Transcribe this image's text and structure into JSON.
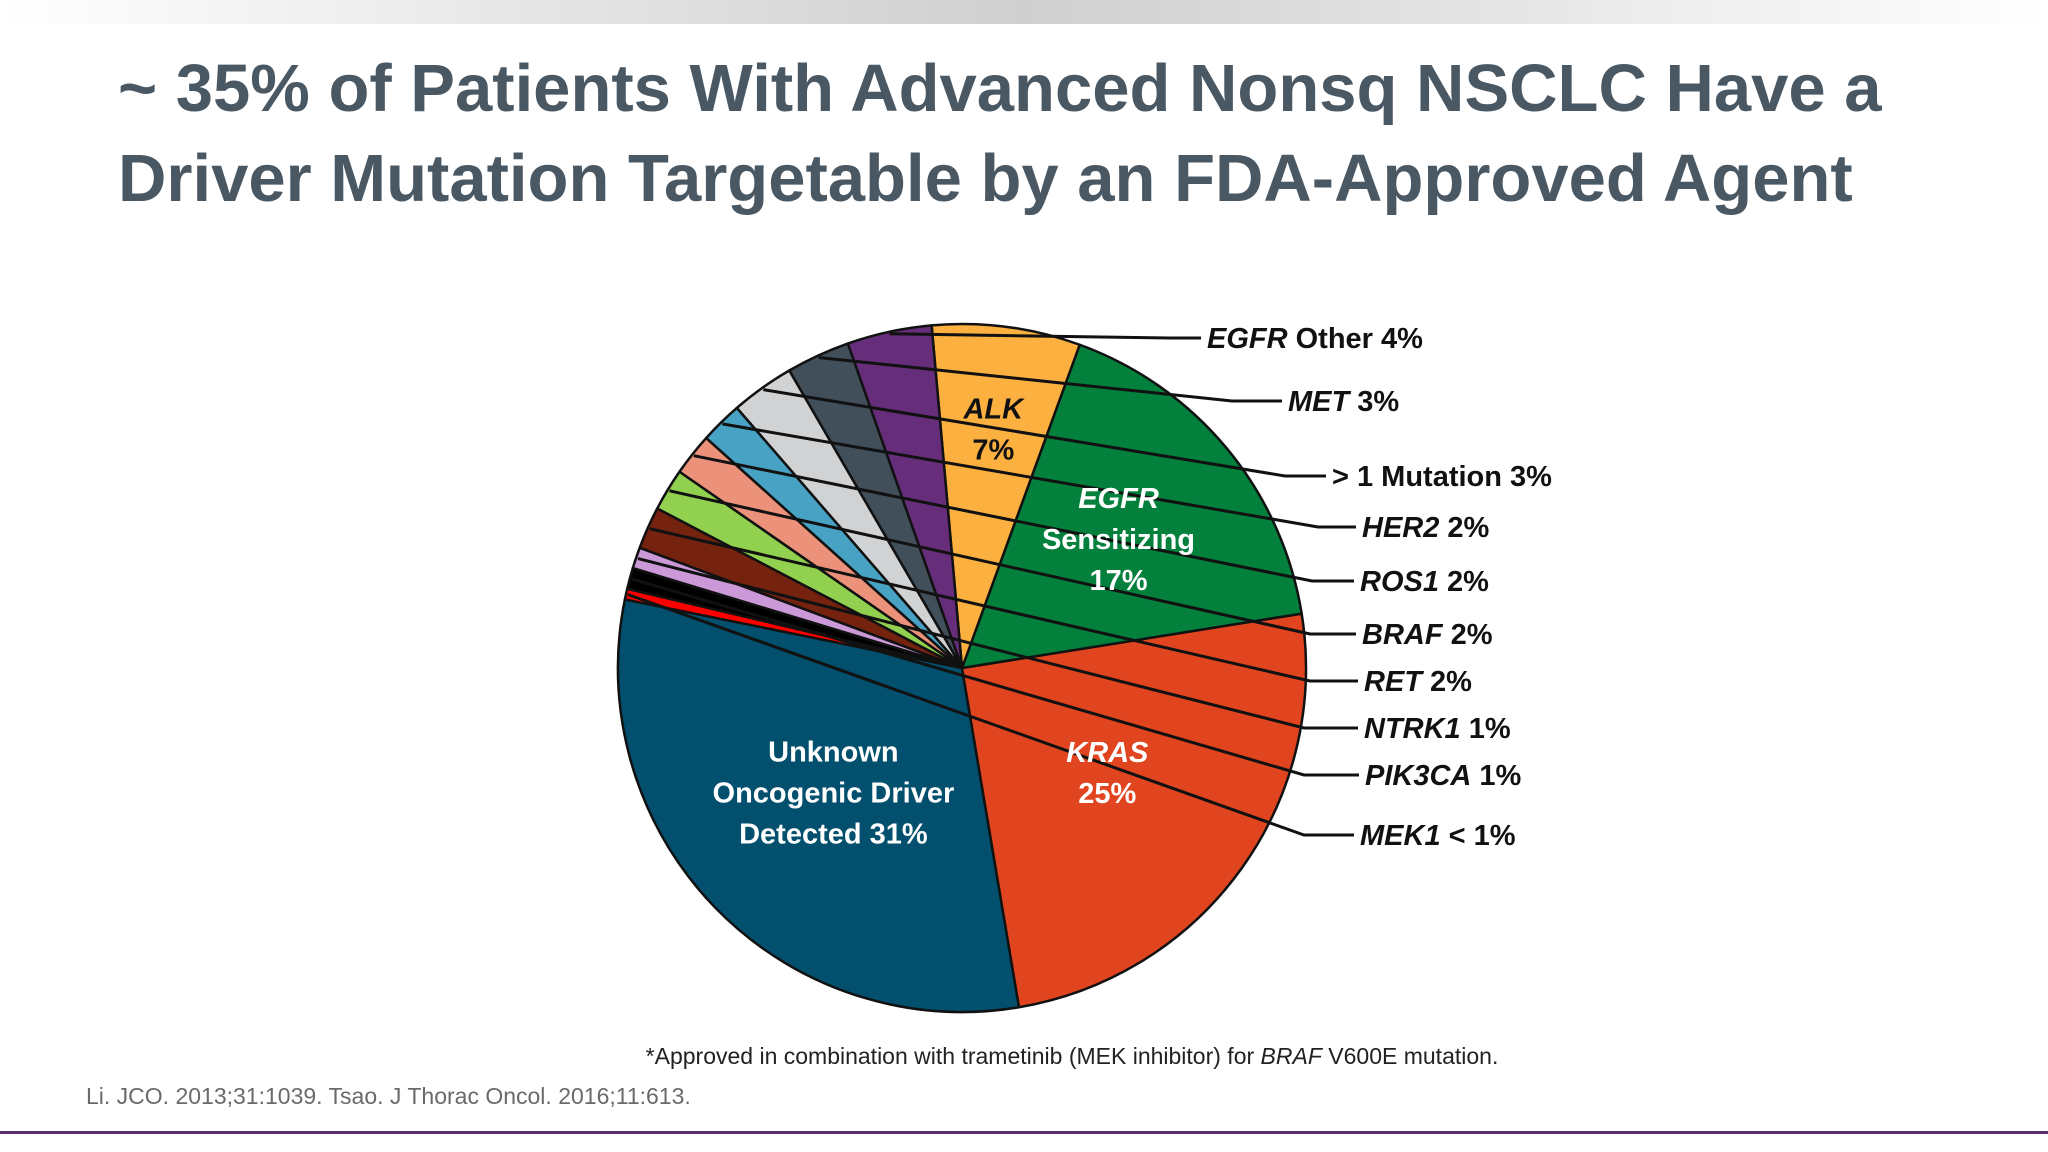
{
  "slide": {
    "title_line1": "~ 35% of Patients With Advanced Nonsq NSCLC Have a",
    "title_line2": "Driver Mutation Targetable by an FDA-Approved Agent",
    "footnote_prefix": "*Approved in combination with trametinib (MEK inhibitor) for ",
    "footnote_gene": "BRAF",
    "footnote_suffix": " V600E mutation.",
    "citation": "Li. JCO. 2013;31:1039. Tsao. J Thorac Oncol. 2016;11:613."
  },
  "chart_data": {
    "type": "pie",
    "title": "",
    "slices": [
      {
        "label": "Unknown Oncogenic Driver Detected",
        "value": 31,
        "value_label": "31%",
        "color": "#02506e"
      },
      {
        "label": "KRAS",
        "value": 25,
        "value_label": "25%",
        "color": "#e0451f"
      },
      {
        "label": "EGFR Sensitizing",
        "value": 17,
        "value_label": "17%",
        "color": "#04803d"
      },
      {
        "label": "ALK",
        "value": 7,
        "value_label": "7%",
        "color": "#fbb040"
      },
      {
        "label": "EGFR Other",
        "value": 4,
        "value_label": "4%",
        "color": "#662d7a"
      },
      {
        "label": "MET",
        "value": 3,
        "value_label": "3%",
        "color": "#414f5b"
      },
      {
        "label": "> 1 Mutation",
        "value": 3,
        "value_label": "3%",
        "color": "#d1d2d4"
      },
      {
        "label": "HER2",
        "value": 2,
        "value_label": "2%",
        "color": "#47a2c4"
      },
      {
        "label": "ROS1",
        "value": 2,
        "value_label": "2%",
        "color": "#ec927b"
      },
      {
        "label": "BRAF",
        "value": 2,
        "value_label": "2%",
        "color": "#92d04f"
      },
      {
        "label": "RET",
        "value": 2,
        "value_label": "2%",
        "color": "#75220f"
      },
      {
        "label": "NTRK1",
        "value": 1,
        "value_label": "1%",
        "color": "#cc99d8"
      },
      {
        "label": "PIK3CA",
        "value": 1,
        "value_label": "1%",
        "color": "#000000"
      },
      {
        "label": "MEK1",
        "value": 0.5,
        "value_label": "< 1%",
        "color": "#ff0000"
      }
    ],
    "inside_labels": [
      {
        "lines": [
          "Unknown",
          "Oncogenic Driver",
          "Detected 31%"
        ],
        "italic_first": false
      },
      {
        "lines": [
          "KRAS",
          "25%"
        ],
        "italic_first": true
      },
      {
        "lines": [
          "EGFR",
          "Sensitizing",
          "17%"
        ],
        "italic_first": true
      },
      {
        "lines": [
          "ALK",
          "7%"
        ],
        "italic_first": true,
        "dark": true
      }
    ],
    "outside_labels": [
      {
        "name": "EGFR",
        "rest": " Other 4%",
        "italic": true
      },
      {
        "name": "MET",
        "rest": " 3%",
        "italic": true
      },
      {
        "name": "> 1 Mutation 3%",
        "rest": "",
        "italic": false
      },
      {
        "name": "HER2",
        "rest": " 2%",
        "italic": true
      },
      {
        "name": "ROS1",
        "rest": " 2%",
        "italic": true
      },
      {
        "name": "BRAF",
        "rest": " 2%",
        "italic": true
      },
      {
        "name": "RET",
        "rest": " 2%",
        "italic": true
      },
      {
        "name": "NTRK1",
        "rest": " 1%",
        "italic": true
      },
      {
        "name": "PIK3CA",
        "rest": " 1%",
        "italic": true
      },
      {
        "name": "MEK1",
        "rest": " < 1%",
        "italic": true
      }
    ],
    "legend": "none"
  }
}
